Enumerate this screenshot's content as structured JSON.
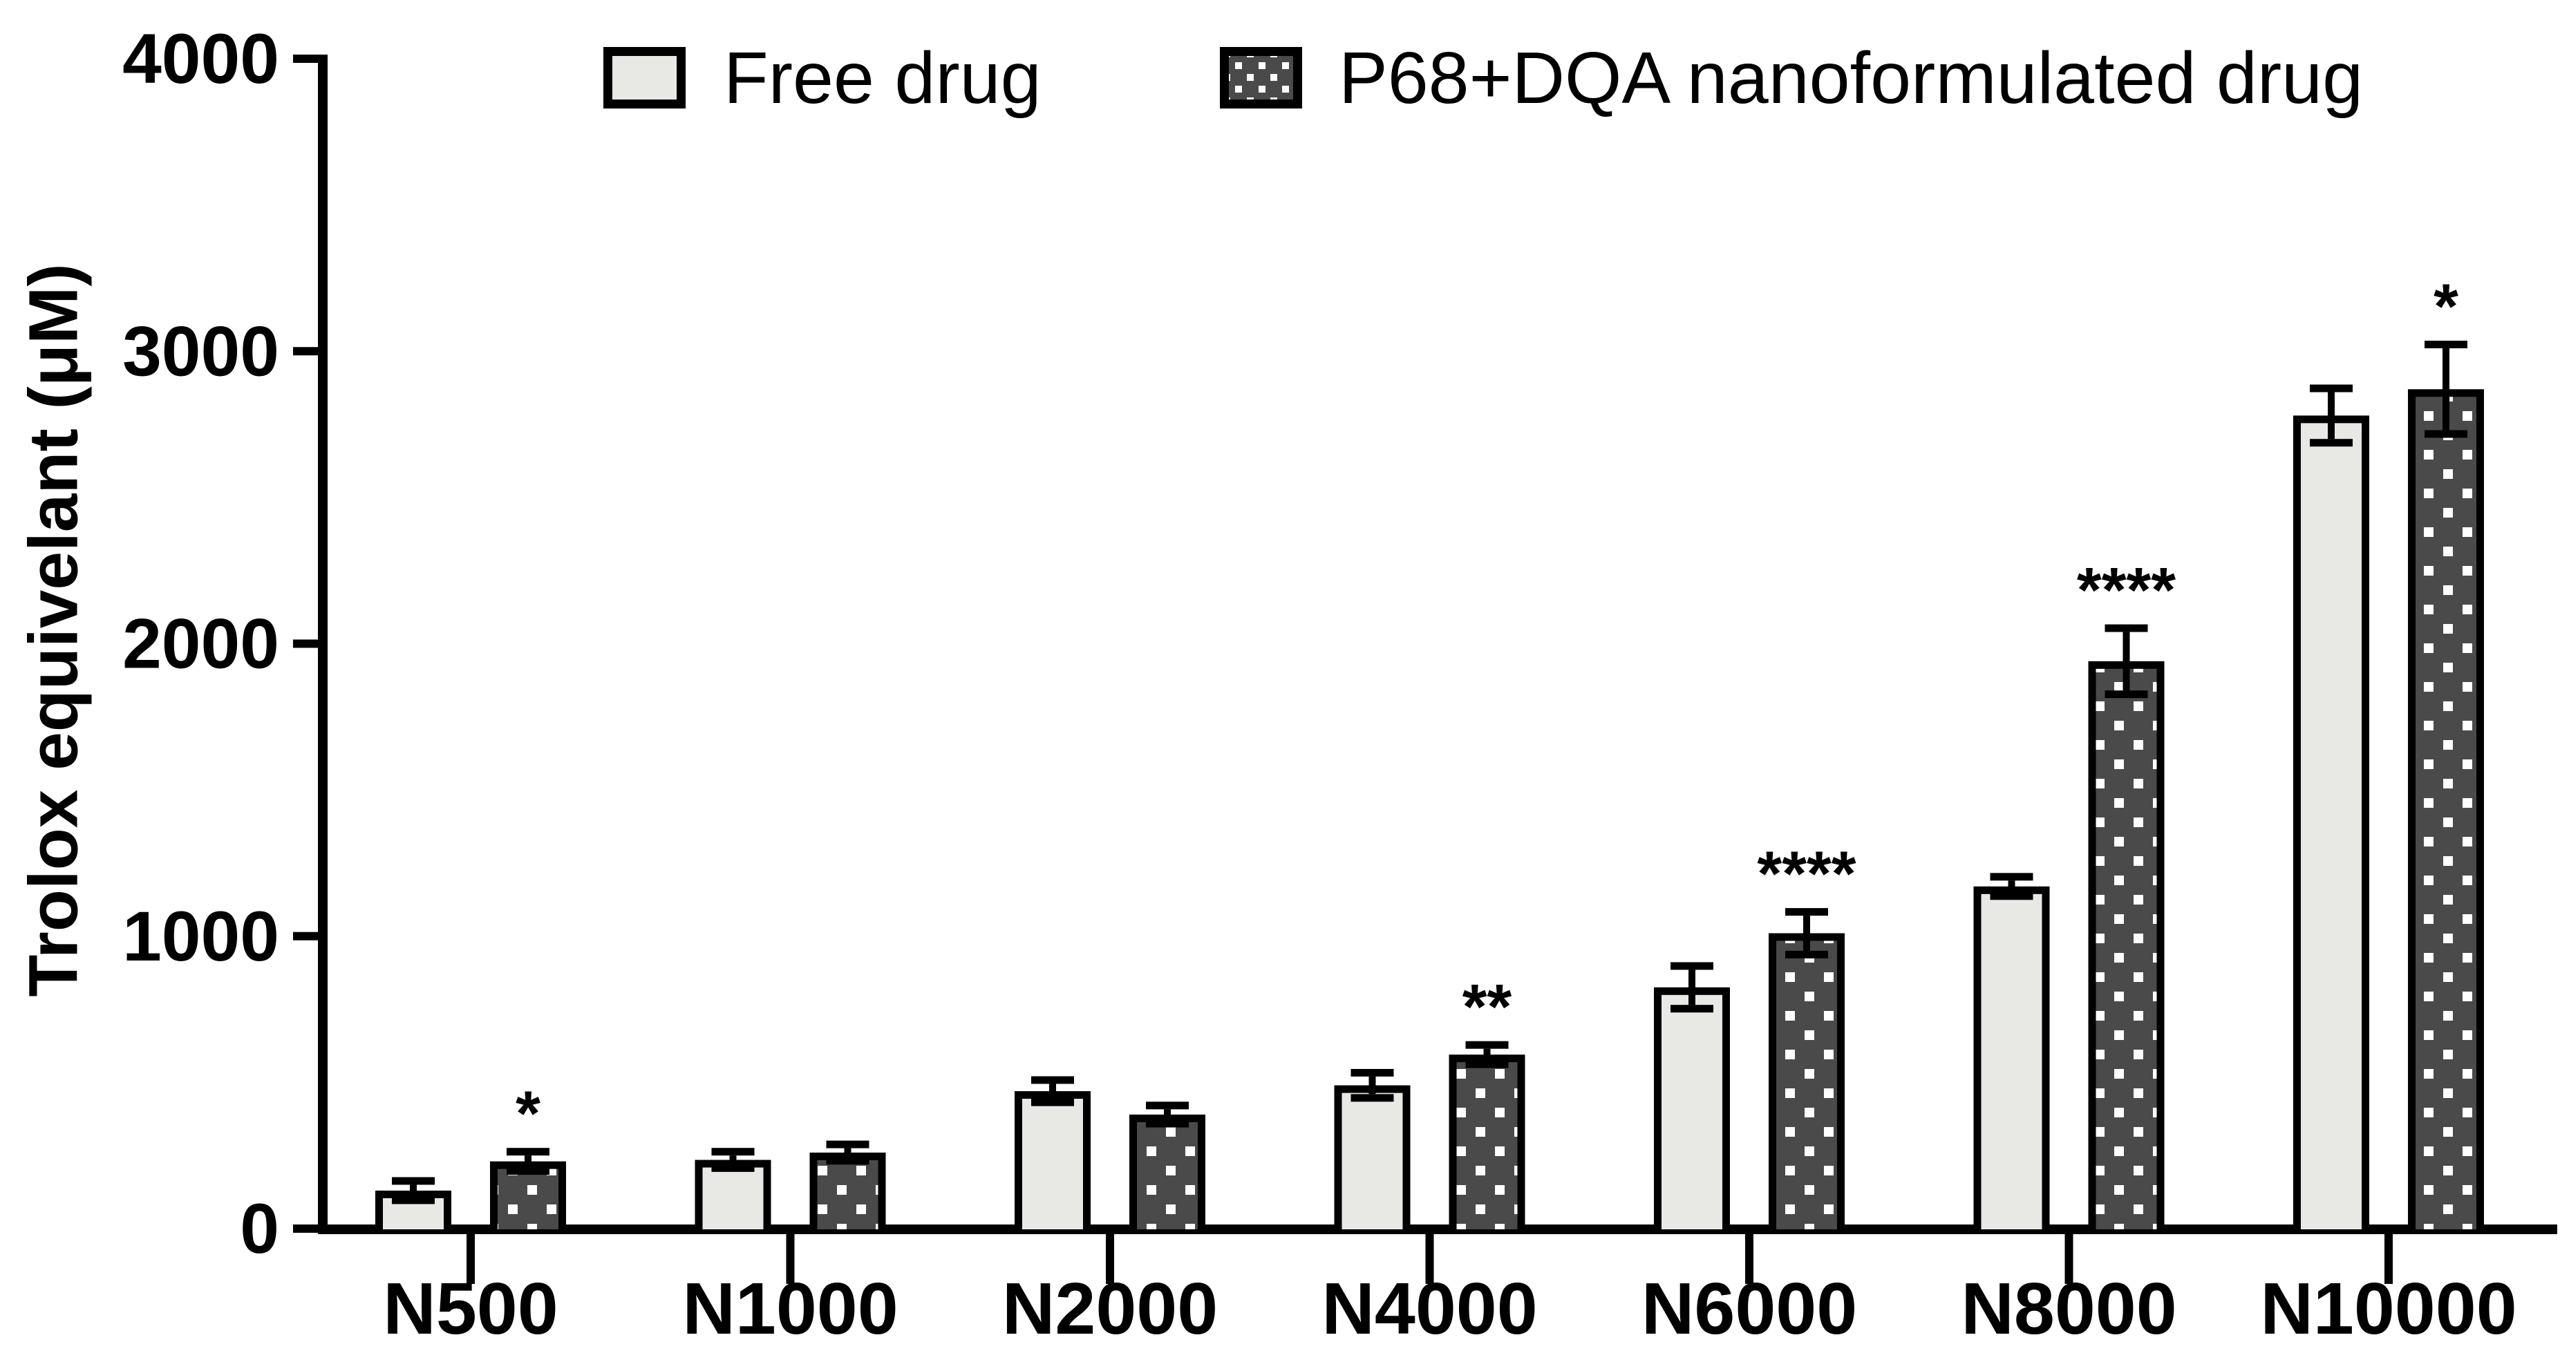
{
  "page": {
    "background": "#ffffff"
  },
  "legend": {
    "items": [
      {
        "label": "Free drug",
        "swatch": "light-solid"
      },
      {
        "label": "P68+DQA nanoformulated drug",
        "swatch": "dark-dotted"
      }
    ]
  },
  "colors": {
    "ink": "#000000",
    "free_fill": "#e8e8e5",
    "nano_fill": "#4a4a4a",
    "dot": "#ffffff",
    "background": "#ffffff"
  },
  "chart_data": {
    "type": "bar",
    "title": "",
    "xlabel": "",
    "ylabel": "Trolox equivelant (μM)",
    "categories": [
      "N500",
      "N1000",
      "N2000",
      "N4000",
      "N6000",
      "N8000",
      "N10000"
    ],
    "series": [
      {
        "name": "Free drug",
        "style": "light-solid",
        "values": [
          130,
          235,
          470,
          490,
          825,
          1170,
          2780
        ],
        "errors": [
          20,
          15,
          25,
          30,
          60,
          20,
          80
        ]
      },
      {
        "name": "P68+DQA nanoformulated drug",
        "style": "dark-dotted",
        "values": [
          230,
          260,
          390,
          595,
          1010,
          1940,
          2870
        ],
        "errors": [
          20,
          15,
          18,
          20,
          60,
          100,
          140
        ]
      }
    ],
    "significance": [
      {
        "category": "N500",
        "series": 1,
        "label": "*"
      },
      {
        "category": "N4000",
        "series": 1,
        "label": "**"
      },
      {
        "category": "N6000",
        "series": 1,
        "label": "****"
      },
      {
        "category": "N8000",
        "series": 1,
        "label": "****"
      },
      {
        "category": "N10000",
        "series": 1,
        "label": "*"
      }
    ],
    "ylim": [
      0,
      4000
    ],
    "yticks": [
      0,
      1000,
      2000,
      3000,
      4000
    ],
    "grid": false,
    "error_bars": true,
    "legend_position": "top"
  }
}
